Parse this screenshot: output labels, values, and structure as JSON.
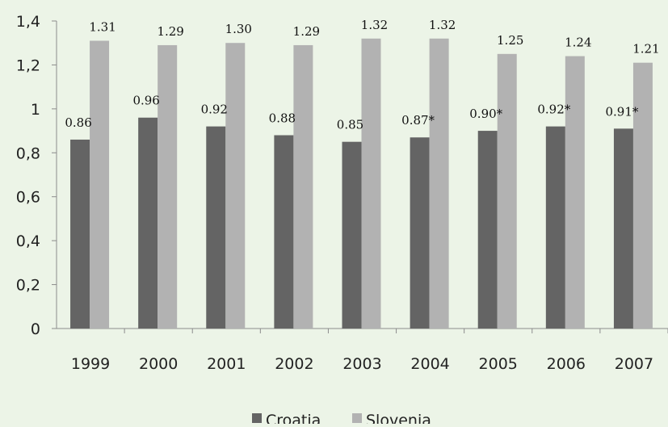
{
  "chart_data": {
    "type": "bar",
    "categories": [
      "1999",
      "2000",
      "2001",
      "2002",
      "2003",
      "2004",
      "2005",
      "2006",
      "2007"
    ],
    "series": [
      {
        "name": "Croatia",
        "color": "#646464",
        "values": [
          0.86,
          0.96,
          0.92,
          0.88,
          0.85,
          0.87,
          0.9,
          0.92,
          0.91
        ],
        "labels": [
          "0.86",
          "0.96",
          "0.92",
          "0.88",
          "0.85",
          "0.87*",
          "0.90*",
          "0.92*",
          "0.91*"
        ]
      },
      {
        "name": "Slovenia",
        "color": "#b2b2b2",
        "values": [
          1.31,
          1.29,
          1.3,
          1.29,
          1.32,
          1.32,
          1.25,
          1.24,
          1.21
        ],
        "labels": [
          "1.31",
          "1.29",
          "1.30",
          "1.29",
          "1.32",
          "1.32",
          "1.25",
          "1.24",
          "1.21"
        ]
      }
    ],
    "ylim": [
      0,
      1.4
    ],
    "yticks": [
      0,
      0.2,
      0.4,
      0.6,
      0.8,
      1,
      1.2,
      1.4
    ],
    "ytick_labels": [
      "0",
      "0,2",
      "0,4",
      "0,6",
      "0,8",
      "1",
      "1,2",
      "1,4"
    ],
    "grid": false,
    "legend_position": "bottom",
    "background_color": "#ecf4e7"
  }
}
